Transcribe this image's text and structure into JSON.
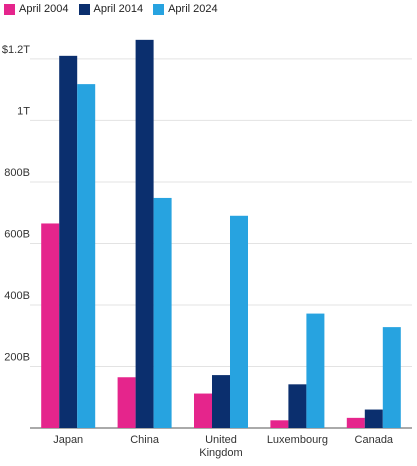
{
  "chart_data": {
    "type": "bar",
    "categories": [
      "Japan",
      "China",
      "United Kingdom",
      "Luxembourg",
      "Canada"
    ],
    "category_lines": [
      [
        "Japan"
      ],
      [
        "China"
      ],
      [
        "United",
        "Kingdom"
      ],
      [
        "Luxembourg"
      ],
      [
        "Canada"
      ]
    ],
    "series": [
      {
        "name": "April 2004",
        "color": "#e5258c",
        "values": [
          665,
          165,
          112,
          25,
          33
        ]
      },
      {
        "name": "April 2014",
        "color": "#0b2f6e",
        "values": [
          1210,
          1262,
          172,
          142,
          60
        ]
      },
      {
        "name": "April 2024",
        "color": "#27a3e0",
        "values": [
          1118,
          748,
          690,
          372,
          328
        ]
      }
    ],
    "y_ticks": [
      {
        "value": 200,
        "label": "200B"
      },
      {
        "value": 400,
        "label": "400B"
      },
      {
        "value": 600,
        "label": "600B"
      },
      {
        "value": 800,
        "label": "800B"
      },
      {
        "value": 1000,
        "label": "1T"
      },
      {
        "value": 1200,
        "label": "$1.2T"
      }
    ],
    "ylim": [
      0,
      1320
    ],
    "unit": "billions of US dollars",
    "grid": true,
    "legend_position": "top-left"
  }
}
